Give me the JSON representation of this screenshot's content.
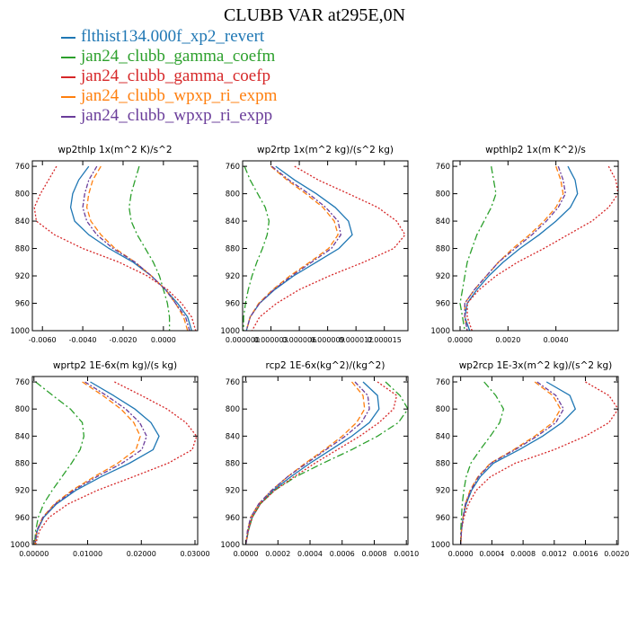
{
  "figure": {
    "title": "CLUBB VAR at295E,0N"
  },
  "legend": [
    {
      "label": "flthist134.000f_xp2_revert",
      "color": "#1f77b4"
    },
    {
      "label": "jan24_clubb_gamma_coefm",
      "color": "#2ca02c"
    },
    {
      "label": "jan24_clubb_gamma_coefp",
      "color": "#d62728"
    },
    {
      "label": "jan24_clubb_wpxp_ri_expm",
      "color": "#ff7f0e"
    },
    {
      "label": "jan24_clubb_wpxp_ri_expp",
      "color": "#6a3d9a"
    }
  ],
  "series_styles": [
    {
      "color": "#1f77b4",
      "dash": ""
    },
    {
      "color": "#2ca02c",
      "dash": "8,3,2,3"
    },
    {
      "color": "#d62728",
      "dash": "2,2"
    },
    {
      "color": "#ff7f0e",
      "dash": "6,3"
    },
    {
      "color": "#6a3d9a",
      "dash": "5,2,2,2"
    }
  ],
  "chart_data": [
    {
      "type": "line",
      "title": "wp2thlp  1x(m^2 K)/s^2",
      "xlim": [
        -0.0065,
        0.0017
      ],
      "ylim": [
        1000,
        752
      ],
      "y_ticks": [
        1000,
        960,
        920,
        880,
        840,
        800,
        760
      ],
      "x_ticks": [
        -0.006,
        -0.004,
        -0.002,
        0.0
      ],
      "x_tick_labels": [
        "-0.0060",
        "-0.0040",
        "-0.0020",
        "0.0000"
      ],
      "y": [
        760,
        780,
        800,
        820,
        840,
        860,
        880,
        900,
        920,
        940,
        960,
        980,
        1000
      ],
      "series": [
        {
          "values": [
            -0.0037,
            -0.0042,
            -0.0045,
            -0.0046,
            -0.0044,
            -0.0037,
            -0.0027,
            -0.0015,
            -0.0006,
            0.0001,
            0.0007,
            0.0012,
            0.0014
          ]
        },
        {
          "values": [
            -0.0012,
            -0.0014,
            -0.0016,
            -0.0017,
            -0.0016,
            -0.0013,
            -0.0009,
            -0.0005,
            -0.0002,
            0.0,
            0.0002,
            0.0003,
            0.0003
          ]
        },
        {
          "values": [
            -0.0053,
            -0.0057,
            -0.0061,
            -0.0064,
            -0.0063,
            -0.0054,
            -0.004,
            -0.0022,
            -0.0008,
            0.0002,
            0.0009,
            0.0014,
            0.0016
          ]
        },
        {
          "values": [
            -0.0031,
            -0.0035,
            -0.0037,
            -0.0038,
            -0.0036,
            -0.0031,
            -0.0024,
            -0.0014,
            -0.0006,
            0.0001,
            0.0006,
            0.001,
            0.0012
          ]
        },
        {
          "values": [
            -0.0033,
            -0.0037,
            -0.0039,
            -0.004,
            -0.0038,
            -0.0033,
            -0.0025,
            -0.0014,
            -0.0006,
            0.0001,
            0.0006,
            0.0011,
            0.0013
          ]
        }
      ]
    },
    {
      "type": "line",
      "title": "wp2rtp  1x(m^2 kg)/(s^2 kg)",
      "xlim": [
        0.0,
        1.75e-05
      ],
      "ylim": [
        1000,
        752
      ],
      "y_ticks": [
        1000,
        960,
        920,
        880,
        840,
        800,
        760
      ],
      "x_ticks": [
        0.0,
        3e-06,
        6e-06,
        9e-06,
        1.2e-05,
        1.5e-05
      ],
      "x_tick_labels": [
        "0.000000",
        "0.000003",
        "0.000006",
        "0.000009",
        "0.000012",
        "0.000015"
      ],
      "y": [
        760,
        780,
        800,
        820,
        840,
        860,
        880,
        900,
        920,
        940,
        960,
        980,
        1000
      ],
      "series": [
        {
          "values": [
            3.5e-06,
            5.5e-06,
            7.8e-06,
            9.8e-06,
            1.12e-05,
            1.16e-05,
            1.02e-05,
            7.8e-06,
            5.4e-06,
            3.4e-06,
            1.8e-06,
            8e-07,
            4e-07
          ]
        },
        {
          "values": [
            2e-07,
            8e-07,
            1.6e-06,
            2.4e-06,
            2.8e-06,
            2.6e-06,
            2.1e-06,
            1.5e-06,
            1e-06,
            6e-07,
            3e-07,
            1e-07,
            1e-07
          ]
        },
        {
          "values": [
            5.5e-06,
            8e-06,
            1.12e-05,
            1.43e-05,
            1.63e-05,
            1.72e-05,
            1.6e-05,
            1.28e-05,
            9.2e-06,
            6e-06,
            3.6e-06,
            1.8e-06,
            1e-06
          ]
        },
        {
          "values": [
            3e-06,
            4.7e-06,
            6.7e-06,
            8.5e-06,
            9.7e-06,
            1.01e-05,
            9.1e-06,
            7.1e-06,
            5e-06,
            3.2e-06,
            1.7e-06,
            8e-07,
            4e-07
          ]
        },
        {
          "values": [
            3.1e-06,
            4.9e-06,
            7e-06,
            8.8e-06,
            1.01e-05,
            1.04e-05,
            9.4e-06,
            7.3e-06,
            5.2e-06,
            3.3e-06,
            1.8e-06,
            8e-07,
            4e-07
          ]
        }
      ]
    },
    {
      "type": "line",
      "title": "wpthlp2  1x(m K^2)/s",
      "xlim": [
        -0.0003,
        0.0066
      ],
      "ylim": [
        1000,
        752
      ],
      "y_ticks": [
        1000,
        960,
        920,
        880,
        840,
        800,
        760
      ],
      "x_ticks": [
        0.0,
        0.002,
        0.004
      ],
      "x_tick_labels": [
        "0.0000",
        "0.0020",
        "0.0040"
      ],
      "y": [
        760,
        780,
        800,
        820,
        840,
        860,
        880,
        900,
        920,
        940,
        960,
        980,
        1000
      ],
      "series": [
        {
          "values": [
            0.0045,
            0.0048,
            0.0049,
            0.0046,
            0.004,
            0.0033,
            0.0025,
            0.0018,
            0.0012,
            0.0007,
            0.0003,
            0.0002,
            0.0004
          ]
        },
        {
          "values": [
            0.0013,
            0.0014,
            0.0015,
            0.0013,
            0.001,
            0.0007,
            0.0005,
            0.0003,
            0.0002,
            0.0001,
            0.0,
            0.0001,
            0.0002
          ]
        },
        {
          "values": [
            0.0062,
            0.0065,
            0.0066,
            0.0062,
            0.0055,
            0.0045,
            0.0035,
            0.0024,
            0.0015,
            0.0008,
            0.0003,
            0.0003,
            0.0005
          ]
        },
        {
          "values": [
            0.004,
            0.0042,
            0.0043,
            0.004,
            0.0035,
            0.0029,
            0.0022,
            0.0016,
            0.0011,
            0.0006,
            0.0002,
            0.0002,
            0.0003
          ]
        },
        {
          "values": [
            0.0041,
            0.0043,
            0.0044,
            0.0041,
            0.0036,
            0.003,
            0.0023,
            0.0016,
            0.0011,
            0.0006,
            0.0002,
            0.0002,
            0.0003
          ]
        }
      ]
    },
    {
      "type": "line",
      "title": "wprtp2  1E-6x(m kg)/(s kg)",
      "xlim": [
        -0.0003,
        0.0305
      ],
      "ylim": [
        1000,
        752
      ],
      "y_ticks": [
        1000,
        960,
        920,
        880,
        840,
        800,
        760
      ],
      "x_ticks": [
        0.0,
        0.01,
        0.02,
        0.03
      ],
      "x_tick_labels": [
        "0.00000",
        "0.01000",
        "0.02000",
        "0.03000"
      ],
      "y": [
        760,
        780,
        800,
        820,
        840,
        860,
        880,
        900,
        920,
        940,
        960,
        980,
        1000
      ],
      "series": [
        {
          "values": [
            0.0105,
            0.0148,
            0.0188,
            0.0218,
            0.0233,
            0.0222,
            0.0178,
            0.0125,
            0.0078,
            0.0042,
            0.0018,
            0.0006,
            0.0002
          ]
        },
        {
          "values": [
            0.0003,
            0.0035,
            0.0068,
            0.009,
            0.0093,
            0.0086,
            0.007,
            0.0052,
            0.0034,
            0.0018,
            0.0008,
            0.0003,
            0.0001
          ]
        },
        {
          "values": [
            0.015,
            0.02,
            0.0248,
            0.0283,
            0.0303,
            0.0295,
            0.025,
            0.0185,
            0.0118,
            0.0064,
            0.0028,
            0.001,
            0.0003
          ]
        },
        {
          "values": [
            0.009,
            0.0128,
            0.0162,
            0.0186,
            0.0198,
            0.019,
            0.0156,
            0.0112,
            0.0071,
            0.0038,
            0.0016,
            0.0005,
            0.0002
          ]
        },
        {
          "values": [
            0.0095,
            0.0135,
            0.0171,
            0.0197,
            0.021,
            0.0201,
            0.0164,
            0.0117,
            0.0074,
            0.004,
            0.0017,
            0.0005,
            0.0002
          ]
        }
      ]
    },
    {
      "type": "line",
      "title": "rcp2  1E-6x(kg^2)/(kg^2)",
      "xlim": [
        -2e-05,
        0.00101
      ],
      "ylim": [
        1000,
        752
      ],
      "y_ticks": [
        1000,
        960,
        920,
        880,
        840,
        800,
        760
      ],
      "x_ticks": [
        0.0,
        0.0002,
        0.0004,
        0.0006,
        0.0008,
        0.001
      ],
      "x_tick_labels": [
        "0.0000",
        "0.0002",
        "0.0004",
        "0.0006",
        "0.0008",
        "0.0010"
      ],
      "y": [
        760,
        780,
        800,
        820,
        840,
        860,
        880,
        900,
        920,
        940,
        960,
        980,
        1000
      ],
      "series": [
        {
          "values": [
            0.00073,
            0.00082,
            0.00083,
            0.00077,
            0.00066,
            0.00053,
            0.0004,
            0.00028,
            0.00017,
            9e-05,
            4e-05,
            1.5e-05,
            0.0
          ]
        },
        {
          "values": [
            0.00087,
            0.00096,
            0.00101,
            0.00095,
            0.00082,
            0.00066,
            0.00048,
            0.00031,
            0.00018,
            9e-05,
            4e-05,
            1.5e-05,
            0.0
          ]
        },
        {
          "values": [
            0.00082,
            0.00094,
            0.00092,
            0.00083,
            0.00071,
            0.00057,
            0.00043,
            0.0003,
            0.00018,
            9e-05,
            4e-05,
            1.5e-05,
            0.0
          ]
        },
        {
          "values": [
            0.00066,
            0.00073,
            0.00074,
            0.00069,
            0.0006,
            0.00049,
            0.00037,
            0.00026,
            0.00016,
            8e-05,
            3e-05,
            1e-05,
            0.0
          ]
        },
        {
          "values": [
            0.00068,
            0.00076,
            0.00077,
            0.00072,
            0.00062,
            0.0005,
            0.00038,
            0.00026,
            0.00016,
            8e-05,
            3e-05,
            1e-05,
            0.0
          ]
        }
      ]
    },
    {
      "type": "line",
      "title": "wp2rcp  1E-3x(m^2 kg)/(s^2 kg)",
      "xlim": [
        -0.0001,
        0.00202
      ],
      "ylim": [
        1000,
        752
      ],
      "y_ticks": [
        1000,
        960,
        920,
        880,
        840,
        800,
        760
      ],
      "x_ticks": [
        0.0,
        0.0004,
        0.0008,
        0.0012,
        0.0016,
        0.002
      ],
      "x_tick_labels": [
        "0.0000",
        "0.0004",
        "0.0008",
        "0.0012",
        "0.0016",
        "0.0020"
      ],
      "y": [
        760,
        780,
        800,
        820,
        840,
        860,
        880,
        900,
        920,
        940,
        960,
        980,
        1000
      ],
      "series": [
        {
          "values": [
            0.0011,
            0.0014,
            0.00147,
            0.0013,
            0.00105,
            0.00075,
            0.00042,
            0.00025,
            0.00014,
            7e-05,
            3e-05,
            1e-05,
            0.0
          ]
        },
        {
          "values": [
            0.0003,
            0.00045,
            0.00055,
            0.0005,
            0.00038,
            0.00025,
            0.00013,
            7e-05,
            4e-05,
            2e-05,
            1e-05,
            0.0,
            0.0
          ]
        },
        {
          "values": [
            0.0016,
            0.0019,
            0.00202,
            0.0019,
            0.0016,
            0.0012,
            0.0007,
            0.00038,
            0.0002,
            0.0001,
            4e-05,
            1e-05,
            0.0
          ]
        },
        {
          "values": [
            0.00095,
            0.00118,
            0.00128,
            0.00118,
            0.00095,
            0.00068,
            0.00038,
            0.00022,
            0.00012,
            6e-05,
            3e-05,
            1e-05,
            0.0
          ]
        },
        {
          "values": [
            0.00098,
            0.00122,
            0.00132,
            0.00122,
            0.00098,
            0.0007,
            0.00039,
            0.00023,
            0.00013,
            6e-05,
            3e-05,
            1e-05,
            0.0
          ]
        }
      ]
    }
  ]
}
